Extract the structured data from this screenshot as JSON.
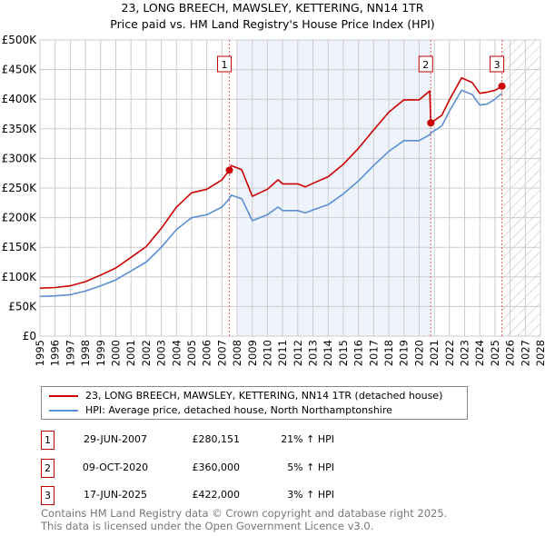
{
  "chart_data": {
    "type": "line",
    "title": "23, LONG BREECH, MAWSLEY, KETTERING, NN14 1TR",
    "subtitle": "Price paid vs. HM Land Registry's House Price Index (HPI)",
    "xlim": [
      1995,
      2028
    ],
    "ylim": [
      0,
      500000
    ],
    "y_ticks": [
      0,
      50000,
      100000,
      150000,
      200000,
      250000,
      300000,
      350000,
      400000,
      450000,
      500000
    ],
    "y_tick_labels": [
      "£0",
      "£50K",
      "£100K",
      "£150K",
      "£200K",
      "£250K",
      "£300K",
      "£350K",
      "£400K",
      "£450K",
      "£500K"
    ],
    "x_ticks": [
      "1995",
      "1996",
      "1997",
      "1998",
      "1999",
      "2000",
      "2001",
      "2002",
      "2003",
      "2004",
      "2005",
      "2006",
      "2007",
      "2008",
      "2009",
      "2010",
      "2011",
      "2012",
      "2013",
      "2014",
      "2015",
      "2016",
      "2017",
      "2018",
      "2019",
      "2020",
      "2021",
      "2022",
      "2023",
      "2024",
      "2025",
      "2026",
      "2027",
      "2028"
    ],
    "grid": true,
    "shaded_period": [
      2008.0,
      2020.77
    ],
    "forecast_hatch_from": 2025.46,
    "series": [
      {
        "name": "23, LONG BREECH, MAWSLEY, KETTERING, NN14 1TR (detached house)",
        "color": "#cc0000",
        "x": [
          1995,
          1996,
          1997,
          1998,
          1999,
          2000,
          2001,
          2002,
          2003,
          2004,
          2005,
          2006,
          2007,
          2007.49,
          2007.6,
          2008.3,
          2009.0,
          2009.5,
          2010,
          2010.7,
          2011,
          2012,
          2012.5,
          2013,
          2014,
          2015,
          2016,
          2017,
          2018,
          2019,
          2020,
          2020.7,
          2020.77,
          2021.5,
          2022,
          2022.8,
          2023.5,
          2024,
          2024.5,
          2025,
          2025.46
        ],
        "y": [
          81000,
          82000,
          85000,
          92000,
          103000,
          115000,
          133000,
          151000,
          182000,
          218000,
          242000,
          248000,
          264000,
          280151,
          288000,
          281000,
          236000,
          242000,
          248000,
          264000,
          257000,
          257000,
          252000,
          258000,
          269000,
          290000,
          317000,
          348000,
          378000,
          399000,
          399000,
          414000,
          360000,
          373000,
          399000,
          436000,
          428000,
          410000,
          412000,
          415000,
          422000
        ]
      },
      {
        "name": "HPI: Average price, detached house, North Northamptonshire",
        "color": "#5b8fd4",
        "x": [
          1995,
          1996,
          1997,
          1998,
          1999,
          2000,
          2001,
          2002,
          2003,
          2004,
          2005,
          2006,
          2007,
          2007.49,
          2007.6,
          2008.3,
          2009.0,
          2009.5,
          2010,
          2010.7,
          2011,
          2012,
          2012.5,
          2013,
          2014,
          2015,
          2016,
          2017,
          2018,
          2019,
          2020,
          2020.7,
          2020.77,
          2021.5,
          2022,
          2022.8,
          2023.5,
          2024,
          2024.5,
          2025,
          2025.46
        ],
        "y": [
          67000,
          68000,
          70000,
          76000,
          85000,
          95000,
          110000,
          125000,
          150000,
          180000,
          200000,
          205000,
          218000,
          232000,
          238000,
          232000,
          195000,
          200000,
          205000,
          218000,
          212000,
          212000,
          208000,
          213000,
          222000,
          240000,
          262000,
          288000,
          312000,
          330000,
          330000,
          340000,
          343000,
          355000,
          380000,
          415000,
          408000,
          390000,
          392000,
          400000,
          410000
        ]
      }
    ],
    "sales": [
      {
        "label": "1",
        "x": 2007.49,
        "y": 280151
      },
      {
        "label": "2",
        "x": 2020.77,
        "y": 360000
      },
      {
        "label": "3",
        "x": 2025.46,
        "y": 422000
      }
    ]
  },
  "title_line1": "23, LONG BREECH, MAWSLEY, KETTERING, NN14 1TR",
  "title_line2": "Price paid vs. HM Land Registry's House Price Index (HPI)",
  "legend": {
    "property": "23, LONG BREECH, MAWSLEY, KETTERING, NN14 1TR (detached house)",
    "hpi": "HPI: Average price, detached house, North Northamptonshire",
    "property_color": "#cc0000",
    "hpi_color": "#5b8fd4"
  },
  "transactions": [
    {
      "num": "1",
      "date": "29-JUN-2007",
      "price": "£280,151",
      "pct": "21% ↑ HPI"
    },
    {
      "num": "2",
      "date": "09-OCT-2020",
      "price": "£360,000",
      "pct": "5% ↑ HPI"
    },
    {
      "num": "3",
      "date": "17-JUN-2025",
      "price": "£422,000",
      "pct": "3% ↑ HPI"
    }
  ],
  "footer": {
    "line1": "Contains HM Land Registry data © Crown copyright and database right 2025.",
    "line2": "This data is licensed under the Open Government Licence v3.0."
  }
}
